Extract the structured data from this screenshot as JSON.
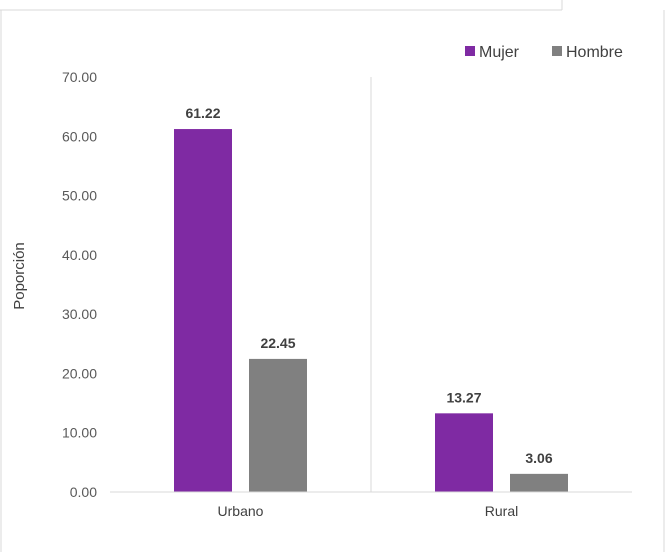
{
  "chart_data": {
    "type": "bar",
    "categories": [
      "Urbano",
      "Rural"
    ],
    "series": [
      {
        "name": "Mujer",
        "values": [
          61.22,
          13.27
        ],
        "color": "#7f2aa3"
      },
      {
        "name": "Hombre",
        "values": [
          22.45,
          3.06
        ],
        "color": "#808080"
      }
    ],
    "ylabel": "Poporción",
    "xlabel": "",
    "ylim": [
      0,
      70
    ],
    "yticks": [
      "0.00",
      "10.00",
      "20.00",
      "30.00",
      "40.00",
      "50.00",
      "60.00",
      "70.00"
    ],
    "legend_position": "top-right",
    "grid": false,
    "category_separators": true
  }
}
